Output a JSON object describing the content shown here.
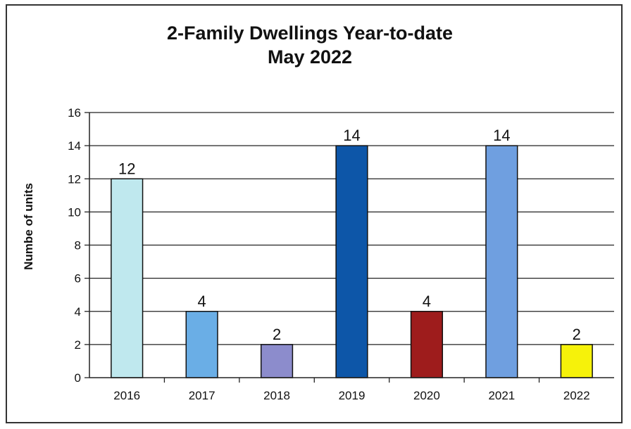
{
  "chart_data": {
    "type": "bar",
    "title": "2-Family Dwellings Year-to-date",
    "subtitle": "May 2022",
    "xlabel": "",
    "ylabel": "Numbe of units",
    "ylim": [
      0,
      16
    ],
    "yticks": [
      0,
      2,
      4,
      6,
      8,
      10,
      12,
      14,
      16
    ],
    "grid": true,
    "legend": "none",
    "categories": [
      "2016",
      "2017",
      "2018",
      "2019",
      "2020",
      "2021",
      "2022"
    ],
    "values": [
      12,
      4,
      2,
      14,
      4,
      14,
      2
    ],
    "data_labels": [
      "12",
      "4",
      "2",
      "14",
      "4",
      "14",
      "2"
    ],
    "colors": [
      "#bfe8ee",
      "#6aaee6",
      "#8c8ccc",
      "#0d56a8",
      "#9e1c1c",
      "#6f9fe0",
      "#f6f20a"
    ]
  }
}
